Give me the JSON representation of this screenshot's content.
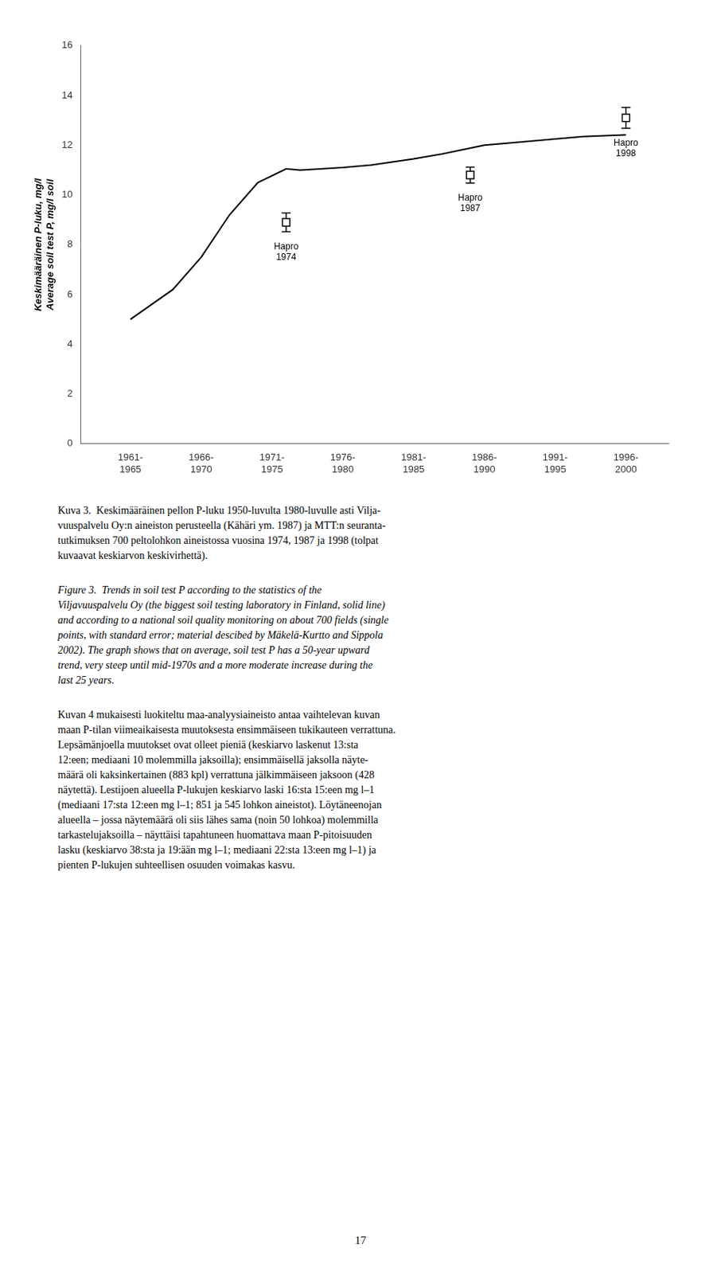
{
  "chart_data": {
    "type": "line",
    "y_label": "Keskimääräinen P-luku, mg/l\nAverage soil test P, mg/l soil",
    "xlim": [
      1959.5,
      2001
    ],
    "xticks": [
      {
        "value": 1963,
        "label": "1961-\n1965"
      },
      {
        "value": 1968,
        "label": "1966-\n1970"
      },
      {
        "value": 1973,
        "label": "1971-\n1975"
      },
      {
        "value": 1978,
        "label": "1976-\n1980"
      },
      {
        "value": 1983,
        "label": "1981-\n1985"
      },
      {
        "value": 1988,
        "label": "1986-\n1990"
      },
      {
        "value": 1993,
        "label": "1991-\n1995"
      },
      {
        "value": 1998,
        "label": "1996-\n2000"
      }
    ],
    "ylim": [
      0,
      16
    ],
    "yticks": [
      0,
      2,
      4,
      6,
      8,
      10,
      12,
      14,
      16
    ],
    "grid": false,
    "series": [
      {
        "type": "line",
        "color": "#000000",
        "x": [
          1963,
          1966,
          1968,
          1970,
          1972,
          1974,
          1975,
          1978,
          1980,
          1983,
          1985,
          1988,
          1990,
          1993,
          1995,
          1998
        ],
        "values": [
          5.0,
          6.2,
          7.5,
          9.2,
          10.5,
          11.05,
          11.0,
          11.1,
          11.2,
          11.45,
          11.65,
          12.0,
          12.1,
          12.25,
          12.35,
          12.42
        ]
      },
      {
        "type": "scatter",
        "color": "#000000",
        "marker": "square",
        "x": [
          1974,
          1987,
          1998
        ],
        "values": [
          8.9,
          10.8,
          13.1
        ],
        "yerr": [
          0.38,
          0.32,
          0.42
        ],
        "point_labels": [
          "Hapro\n1974",
          "Hapro\n1987",
          "Hapro\n1998"
        ]
      }
    ],
    "annotations": [
      "Kuva 3.  Keskimääräinen pellon P-luku 1950-luvulta 1980-luvulle asti Vilja-\nvuuspalvelu Oy:n aineiston perusteella (Kähäri ym. 1987) ja MTT:n seuranta-\ntutkimuksen 700 peltolohkon aineistossa vuosina 1974, 1987 ja 1998 (tolpat\nkuvaavat keskiarvon keskivirhettä).",
      "Figure 3.  Trends in soil test P according to the statistics of the\nViljavuuspalvelu Oy (the biggest soil testing laboratory in Finland, solid line)\nand according to a national soil quality monitoring on about 700 fields (single\npoints, with standard error; material descibed by Mäkelä-Kurtto and Sippola\n2002). The graph shows that on average, soil test P has a 50-year upward\ntrend, very steep until mid-1970s and a more moderate increase during the\nlast 25 years.",
      "Kuvan 4 mukaisesti luokiteltu maa-analyysiaineisto antaa vaihtelevan kuvan\nmaan P-tilan viimeaikaisesta muutoksesta ensimmäiseen tukikauteen verrattuna.\nLepsämänjoella muutokset ovat olleet pieniä (keskiarvo laskenut 13:sta\n12:een; mediaani 10 molemmilla jaksoilla); ensimmäisellä jaksolla näyte-\nmäärä oli kaksinkertainen (883 kpl) verrattuna jälkimmäiseen jaksoon (428\nnäytettä). Lestijoen alueella P-lukujen keskiarvo laski 16:sta 15:een mg l–1\n(mediaani 17:sta 12:een mg l–1; 851 ja 545 lohkon aineistot). Löytäneenojan\nalueella – jossa näytemäärä oli siis lähes sama (noin 50 lohkoa) molemmilla\ntarkastelujaksoilla – näyttäisi tapahtuneen huomattava maan P-pitoisuuden\nlasku (keskiarvo 38:sta ja 19:ään mg l–1; mediaani 22:sta 13:een mg l–1) ja\npienten P-lukujen suhteellisen osuuden voimakas kasvu.",
      "17"
    ]
  }
}
